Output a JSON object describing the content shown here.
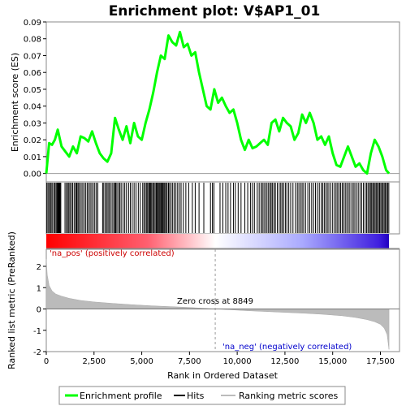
{
  "chart_data": {
    "type": "line",
    "title": "Enrichment plot: V$AP1_01",
    "top_panel": {
      "ylabel": "Enrichment score (ES)",
      "ylim": [
        -0.005,
        0.09
      ],
      "yticks": [
        0.0,
        0.01,
        0.02,
        0.03,
        0.04,
        0.05,
        0.06,
        0.07,
        0.08,
        0.09
      ],
      "ytick_labels": [
        "0.00",
        "0.01",
        "0.02",
        "0.03",
        "0.04",
        "0.05",
        "0.06",
        "0.07",
        "0.08",
        "0.09"
      ],
      "series": [
        {
          "name": "Enrichment profile",
          "color": "#00ff00",
          "x": [
            0,
            150,
            300,
            450,
            600,
            800,
            1000,
            1200,
            1400,
            1600,
            1800,
            2000,
            2200,
            2400,
            2600,
            2800,
            3000,
            3200,
            3400,
            3600,
            3800,
            4000,
            4200,
            4400,
            4600,
            4800,
            5000,
            5200,
            5400,
            5600,
            5800,
            6000,
            6200,
            6400,
            6600,
            6800,
            7000,
            7200,
            7400,
            7600,
            7800,
            8000,
            8200,
            8400,
            8600,
            8800,
            9000,
            9200,
            9400,
            9600,
            9800,
            10000,
            10200,
            10400,
            10600,
            10800,
            11000,
            11200,
            11400,
            11600,
            11800,
            12000,
            12200,
            12400,
            12600,
            12800,
            13000,
            13200,
            13400,
            13600,
            13800,
            14000,
            14200,
            14400,
            14600,
            14800,
            15000,
            15200,
            15400,
            15600,
            15800,
            16000,
            16200,
            16400,
            16600,
            16800,
            17000,
            17200,
            17400,
            17600,
            17800,
            17950
          ],
          "y": [
            0.0,
            0.018,
            0.017,
            0.02,
            0.026,
            0.016,
            0.013,
            0.01,
            0.016,
            0.012,
            0.022,
            0.021,
            0.019,
            0.025,
            0.018,
            0.012,
            0.009,
            0.007,
            0.012,
            0.033,
            0.026,
            0.02,
            0.028,
            0.018,
            0.03,
            0.022,
            0.02,
            0.03,
            0.038,
            0.048,
            0.06,
            0.07,
            0.068,
            0.082,
            0.078,
            0.076,
            0.084,
            0.075,
            0.077,
            0.07,
            0.072,
            0.06,
            0.05,
            0.04,
            0.038,
            0.05,
            0.042,
            0.045,
            0.04,
            0.036,
            0.038,
            0.03,
            0.02,
            0.014,
            0.02,
            0.015,
            0.016,
            0.018,
            0.02,
            0.017,
            0.03,
            0.032,
            0.025,
            0.033,
            0.03,
            0.028,
            0.02,
            0.024,
            0.035,
            0.03,
            0.036,
            0.03,
            0.02,
            0.022,
            0.017,
            0.022,
            0.012,
            0.005,
            0.004,
            0.01,
            0.016,
            0.01,
            0.004,
            0.006,
            0.002,
            0.0,
            0.012,
            0.02,
            0.016,
            0.01,
            0.002,
            0.0
          ]
        }
      ]
    },
    "hits_panel": {
      "series_name": "Hits",
      "hit_ranks": [
        30,
        90,
        150,
        220,
        260,
        330,
        410,
        460,
        520,
        570,
        610,
        640,
        680,
        720,
        760,
        980,
        1050,
        1120,
        1180,
        1240,
        1310,
        1380,
        1460,
        1540,
        1580,
        1620,
        1690,
        1750,
        1830,
        1910,
        1990,
        2070,
        2150,
        2230,
        2300,
        2380,
        2460,
        2540,
        2620,
        2700,
        2950,
        3010,
        3090,
        3160,
        3230,
        3290,
        3370,
        3450,
        3530,
        3590,
        3640,
        3700,
        3780,
        3850,
        3920,
        4020,
        4110,
        4200,
        4310,
        4400,
        4500,
        4600,
        4700,
        4820,
        4920,
        5050,
        5120,
        5190,
        5260,
        5310,
        5370,
        5420,
        5470,
        5520,
        5580,
        5640,
        5700,
        5760,
        5810,
        5860,
        5910,
        5960,
        6010,
        6060,
        6110,
        6160,
        6210,
        6270,
        6330,
        6400,
        6460,
        6540,
        6620,
        6700,
        6790,
        6880,
        6970,
        7060,
        7180,
        7310,
        7460,
        7650,
        7800,
        8000,
        8250,
        8600,
        8700,
        8780,
        9100,
        9250,
        9400,
        9520,
        9650,
        9800,
        9900,
        10050,
        10200,
        10400,
        10550,
        10700,
        10800,
        10900,
        11050,
        11150,
        11250,
        11320,
        11400,
        11480,
        11560,
        11640,
        11720,
        11780,
        11850,
        11930,
        12000,
        12100,
        12200,
        12280,
        12350,
        12430,
        12520,
        12600,
        12700,
        12800,
        12920,
        13050,
        13150,
        13230,
        13320,
        13400,
        13480,
        13580,
        13700,
        13800,
        13900,
        14000,
        14100,
        14200,
        14300,
        14400,
        14480,
        14560,
        14640,
        14720,
        14800,
        14900,
        15000,
        15100,
        15180,
        15260,
        15340,
        15420,
        15500,
        15580,
        15660,
        15740,
        15820,
        15900,
        16000,
        16080,
        16160,
        16250,
        16340,
        16430,
        16520,
        16610,
        16700,
        16780,
        16850,
        16920,
        16980,
        17040,
        17100,
        17160,
        17220,
        17280,
        17340,
        17400,
        17460,
        17520,
        17580,
        17640,
        17700,
        17760,
        17820,
        17880,
        17940
      ]
    },
    "bottom_panel": {
      "ylabel": "Ranked list metric (PreRanked)",
      "xlabel": "Rank in Ordered Dataset",
      "ylim": [
        -2,
        2.8
      ],
      "yticks": [
        -2,
        -1,
        0,
        1,
        2
      ],
      "ytick_labels": [
        "-2",
        "-1",
        "0",
        "1",
        "2"
      ],
      "xlim": [
        0,
        18500
      ],
      "xticks": [
        0,
        2500,
        5000,
        7500,
        10000,
        12500,
        15000,
        17500
      ],
      "xtick_labels": [
        "0",
        "2,500",
        "5,000",
        "7,500",
        "10,000",
        "12,500",
        "15,000",
        "17,500"
      ],
      "metric_curve": {
        "name": "Ranking metric scores",
        "x": [
          0,
          50,
          150,
          300,
          500,
          800,
          1200,
          1800,
          2500,
          3500,
          4500,
          5500,
          6500,
          7500,
          8500,
          8849,
          9500,
          10500,
          11500,
          12500,
          13500,
          14500,
          15500,
          16200,
          16800,
          17200,
          17500,
          17700,
          17850,
          17950
        ],
        "y": [
          2.35,
          1.6,
          1.1,
          0.85,
          0.7,
          0.6,
          0.5,
          0.4,
          0.33,
          0.26,
          0.2,
          0.15,
          0.11,
          0.07,
          0.02,
          0.0,
          -0.03,
          -0.08,
          -0.12,
          -0.16,
          -0.2,
          -0.25,
          -0.32,
          -0.4,
          -0.5,
          -0.6,
          -0.72,
          -0.9,
          -1.2,
          -1.9
        ]
      },
      "zero_cross_label": "Zero cross at 8849",
      "zero_cross": 8849,
      "pos_label": "'na_pos' (positively correlated)",
      "neg_label": "'na_neg' (negatively correlated)",
      "pos_color": "#cc0000",
      "neg_color": "#0000cc"
    },
    "x_total": 17950,
    "legend": {
      "placement": "bottom",
      "items": [
        {
          "label": "Enrichment profile",
          "color": "#00ff00"
        },
        {
          "label": "Hits",
          "color": "#000000"
        },
        {
          "label": "Ranking metric scores",
          "color": "#bbbbbb"
        }
      ]
    }
  }
}
